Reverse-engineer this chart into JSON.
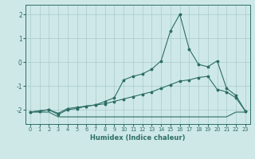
{
  "xlabel": "Humidex (Indice chaleur)",
  "x": [
    0,
    1,
    2,
    3,
    4,
    5,
    6,
    7,
    8,
    9,
    10,
    11,
    12,
    13,
    14,
    15,
    16,
    17,
    18,
    19,
    20,
    21,
    22,
    23
  ],
  "line_flat": [
    -2.1,
    -2.1,
    -2.1,
    -2.3,
    -2.3,
    -2.3,
    -2.3,
    -2.3,
    -2.3,
    -2.3,
    -2.3,
    -2.3,
    -2.3,
    -2.3,
    -2.3,
    -2.3,
    -2.3,
    -2.3,
    -2.3,
    -2.3,
    -2.3,
    -2.3,
    -2.1,
    -2.1
  ],
  "line_smooth": [
    -2.1,
    -2.05,
    -2.0,
    -2.15,
    -1.95,
    -1.9,
    -1.85,
    -1.8,
    -1.75,
    -1.65,
    -1.55,
    -1.45,
    -1.35,
    -1.25,
    -1.1,
    -0.95,
    -0.8,
    -0.75,
    -0.65,
    -0.6,
    -1.15,
    -1.25,
    -1.5,
    -2.05
  ],
  "line_peak": [
    -2.1,
    -2.05,
    -2.0,
    -2.2,
    -2.0,
    -1.95,
    -1.85,
    -1.8,
    -1.65,
    -1.5,
    -0.75,
    -0.6,
    -0.5,
    -0.3,
    0.05,
    1.3,
    2.0,
    0.55,
    -0.1,
    -0.2,
    0.05,
    -1.1,
    -1.4,
    -2.05
  ],
  "bg_color": "#cee8e8",
  "line_color": "#2d6e64",
  "grid_color": "#aacaca",
  "ylim": [
    -2.6,
    2.4
  ],
  "xlim": [
    -0.5,
    23.5
  ],
  "yticks": [
    -2,
    -1,
    0,
    1,
    2
  ],
  "xticks": [
    0,
    1,
    2,
    3,
    4,
    5,
    6,
    7,
    8,
    9,
    10,
    11,
    12,
    13,
    14,
    15,
    16,
    17,
    18,
    19,
    20,
    21,
    22,
    23
  ]
}
